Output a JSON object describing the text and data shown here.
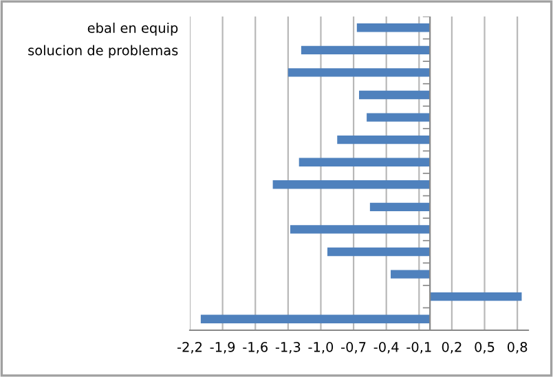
{
  "chart_data": {
    "type": "bar",
    "orientation": "horizontal",
    "categories": [
      "ebal en equip",
      "solucion de problemas",
      null,
      null,
      null,
      null,
      null,
      null,
      null,
      null,
      null,
      null,
      null,
      null
    ],
    "values": [
      -0.67,
      -1.18,
      -1.3,
      -0.65,
      -0.58,
      -0.85,
      -1.2,
      -1.44,
      -0.55,
      -1.28,
      -0.94,
      -0.36,
      0.84,
      -2.1
    ],
    "color": "#4f81bd",
    "xlim": [
      -2.2,
      0.9
    ],
    "xticks": [
      {
        "value": -2.2,
        "label": "-2,2"
      },
      {
        "value": -1.9,
        "label": "-1,9"
      },
      {
        "value": -1.6,
        "label": "-1,6"
      },
      {
        "value": -1.3,
        "label": "-1,3"
      },
      {
        "value": -1.0,
        "label": "-1,0"
      },
      {
        "value": -0.7,
        "label": "-0,7"
      },
      {
        "value": -0.4,
        "label": "-0,4"
      },
      {
        "value": -0.1,
        "label": "-0,1"
      },
      {
        "value": 0.2,
        "label": "0,2"
      },
      {
        "value": 0.5,
        "label": "0,5"
      },
      {
        "value": 0.8,
        "label": "0,8"
      }
    ],
    "grid": "x",
    "legend": false
  }
}
